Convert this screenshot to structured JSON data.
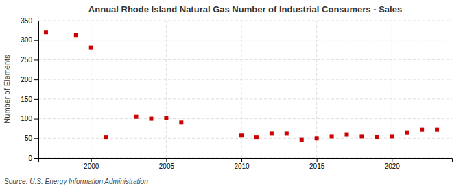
{
  "chart_data": {
    "type": "scatter",
    "title": "Annual Rhode Island Natural Gas Number of Industrial Consumers - Sales",
    "ylabel": "Number of Elements",
    "annotations": [
      "Source: U.S. Energy Information Administration"
    ],
    "x": [
      1997,
      1999,
      2000,
      2001,
      2003,
      2004,
      2005,
      2006,
      2010,
      2011,
      2012,
      2013,
      2014,
      2015,
      2016,
      2017,
      2018,
      2019,
      2020,
      2021,
      2022,
      2023
    ],
    "values": [
      320,
      313,
      281,
      52,
      105,
      100,
      101,
      90,
      57,
      52,
      62,
      62,
      46,
      50,
      55,
      60,
      55,
      53,
      55,
      65,
      72,
      72
    ],
    "color": "#cc0000",
    "marker": "square",
    "xlim": [
      1996.5,
      2024
    ],
    "xticks": [
      2000,
      2005,
      2010,
      2015,
      2020
    ],
    "ylim": [
      0,
      350
    ],
    "yticks": [
      0,
      50,
      100,
      150,
      200,
      250,
      300,
      350
    ],
    "grid": true
  }
}
